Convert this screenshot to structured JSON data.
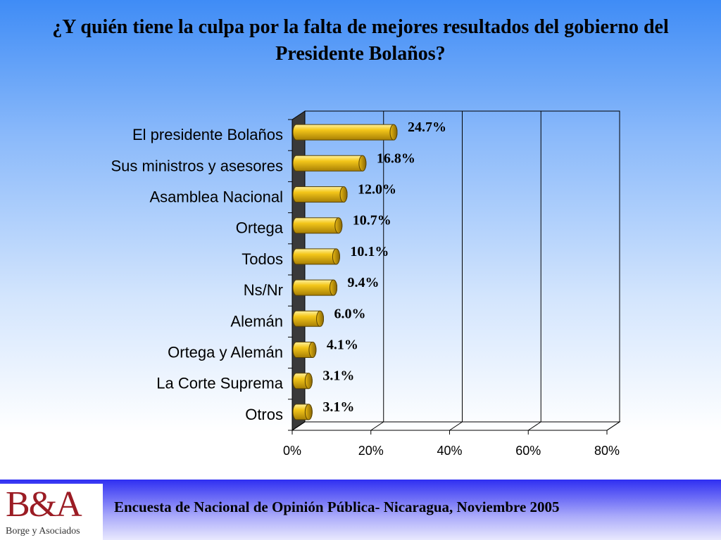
{
  "header": {
    "title": "¿Y quién tiene la culpa por la falta de mejores resultados del gobierno del Presidente Bolaños?"
  },
  "chart_data": {
    "type": "bar",
    "orientation": "horizontal",
    "categories": [
      "El presidente Bolaños",
      "Sus ministros y asesores",
      "Asamblea Nacional",
      "Ortega",
      "Todos",
      "Ns/Nr",
      "Alemán",
      "Ortega y Alemán",
      "La Corte Suprema",
      "Otros"
    ],
    "values": [
      24.7,
      16.8,
      12.0,
      10.7,
      10.1,
      9.4,
      6.0,
      4.1,
      3.1,
      3.1
    ],
    "data_labels": [
      "24.7%",
      "16.8%",
      "12.0%",
      "10.7%",
      "10.1%",
      "9.4%",
      "6.0%",
      "4.1%",
      "3.1%",
      "3.1%"
    ],
    "x_ticks": [
      "0%",
      "20%",
      "40%",
      "60%",
      "80%"
    ],
    "xlim": [
      0,
      80
    ],
    "grid": true,
    "bar_color": "#f2c316",
    "bar_style": "3d-cylinder"
  },
  "footer": {
    "logo_text": "B&A",
    "logo_subtitle": "Borge y Asociados",
    "survey_text": "Encuesta de Nacional de Opinión Pública- Nicaragua, Noviembre 2005"
  }
}
